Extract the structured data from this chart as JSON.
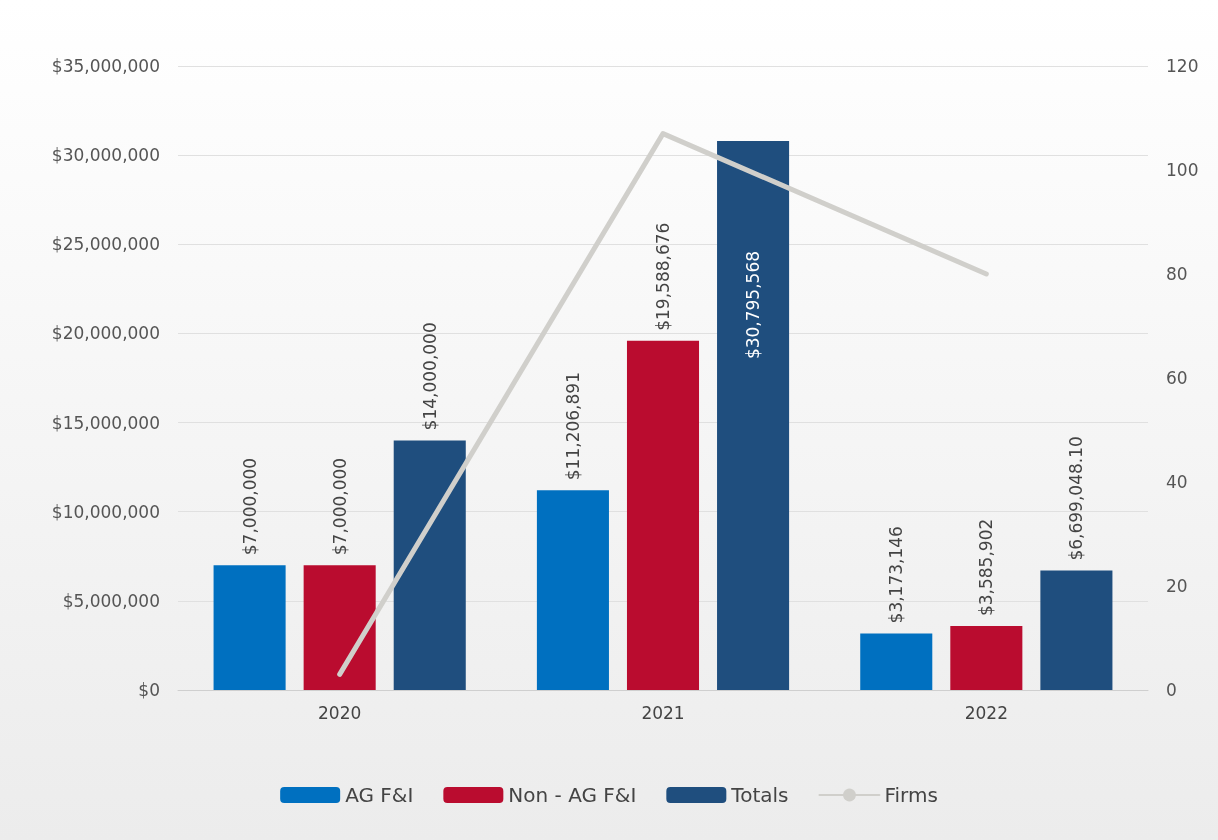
{
  "chart_data": {
    "type": "bar",
    "categories": [
      "2020",
      "2021",
      "2022"
    ],
    "series": [
      {
        "name": "AG F&I",
        "color": "#0070c0",
        "values": [
          7000000,
          11206891,
          3173146
        ],
        "value_labels": [
          "$7,000,000",
          "$11,206,891",
          "$3,173,146"
        ]
      },
      {
        "name": "Non - AG F&I",
        "color": "#ba0c2f",
        "values": [
          7000000,
          19588676,
          3585902
        ],
        "value_labels": [
          "$7,000,000",
          "$19,588,676",
          "$3,585,902"
        ]
      },
      {
        "name": "Totals",
        "color": "#1f4e7e",
        "values": [
          14000000,
          30795568,
          6699048.1
        ],
        "value_labels": [
          "$14,000,000",
          "$30,795,568",
          "$6,699,048.10"
        ]
      },
      {
        "name": "Firms",
        "type": "line",
        "axis": "y2",
        "color": "#d0cfcb",
        "values": [
          3,
          107,
          80
        ]
      }
    ],
    "ylim": [
      0,
      35000000
    ],
    "yticks": [
      {
        "value": 0,
        "label": "$0"
      },
      {
        "value": 5000000,
        "label": "$5,000,000"
      },
      {
        "value": 10000000,
        "label": "$10,000,000"
      },
      {
        "value": 15000000,
        "label": "$15,000,000"
      },
      {
        "value": 20000000,
        "label": "$20,000,000"
      },
      {
        "value": 25000000,
        "label": "$25,000,000"
      },
      {
        "value": 30000000,
        "label": "$30,000,000"
      },
      {
        "value": 35000000,
        "label": "$35,000,000"
      }
    ],
    "y2lim": [
      0,
      120
    ],
    "y2ticks": [
      0,
      20,
      40,
      60,
      80,
      100,
      120
    ],
    "grid": "y",
    "legend": "bottom",
    "marker": "none",
    "line_style": "solid"
  }
}
